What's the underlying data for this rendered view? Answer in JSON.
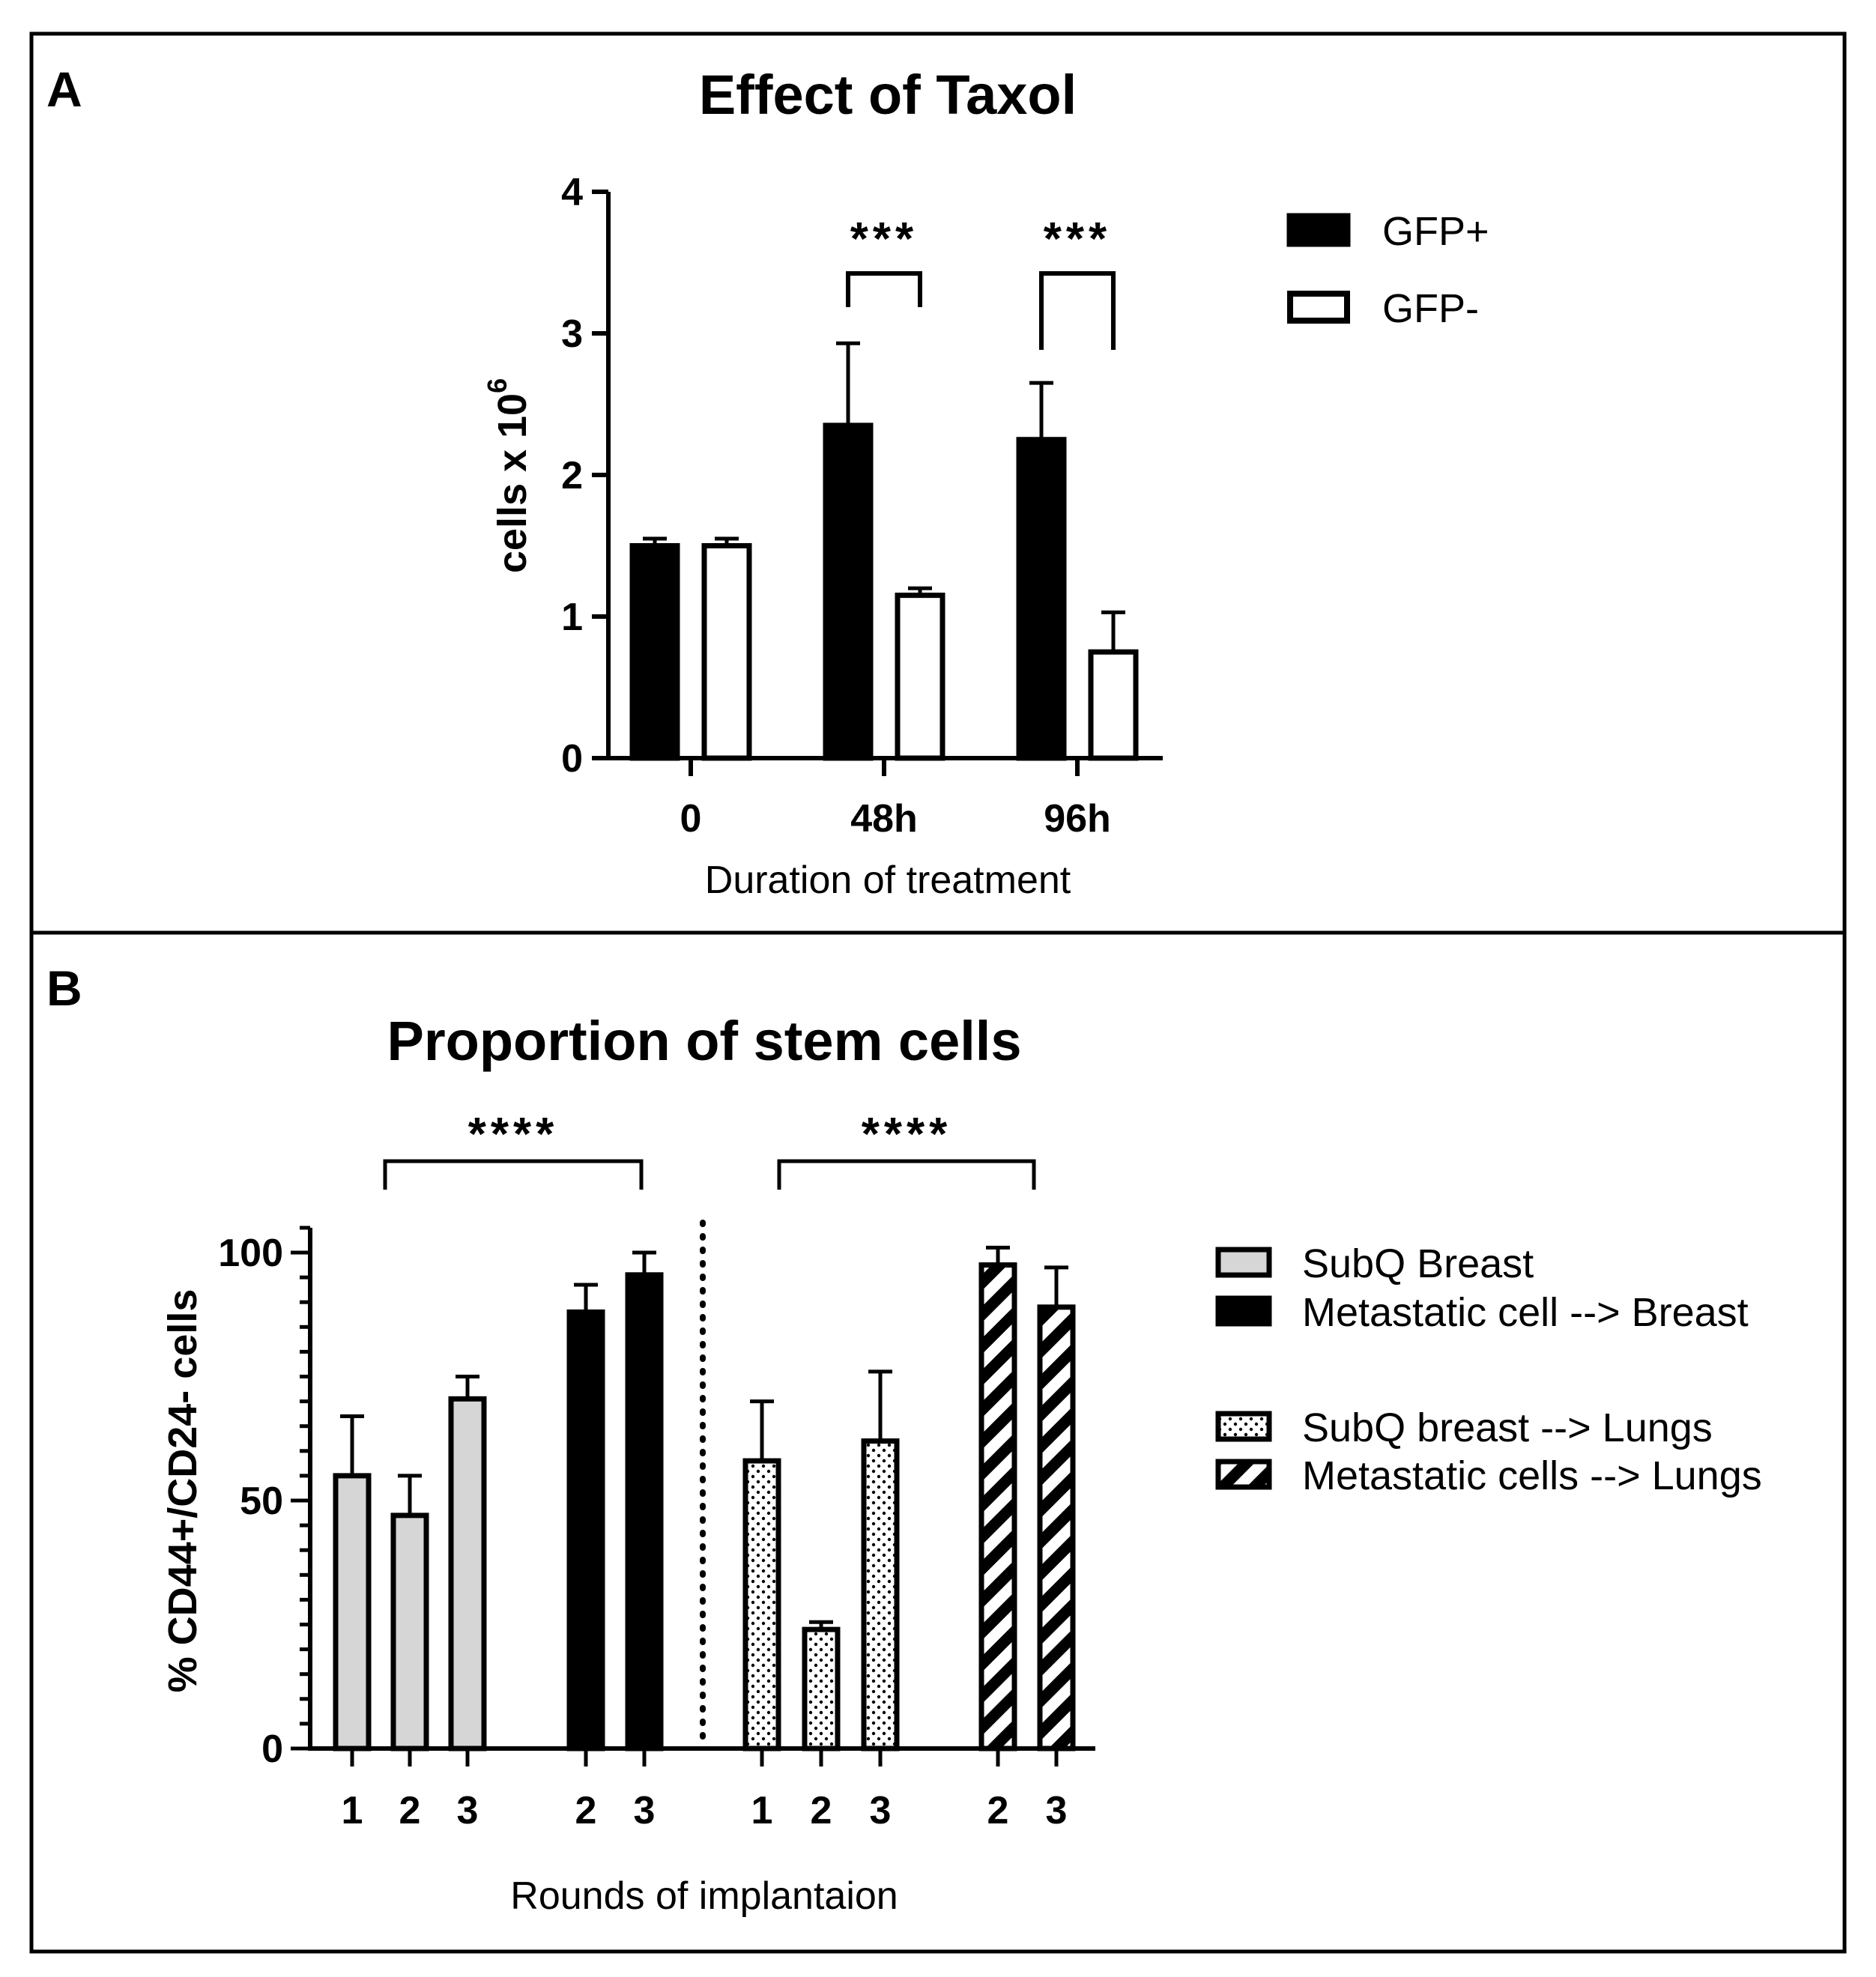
{
  "colors": {
    "black": "#000000",
    "white": "#ffffff",
    "light_gray": "#d6d6d6"
  },
  "chart_data": [
    {
      "panel": "A",
      "type": "bar",
      "title": "Effect of  Taxol",
      "xlabel": "Duration of treatment",
      "ylabel": "cells x 10",
      "ylabel_superscript": "6",
      "categories": [
        "0",
        "48h",
        "96h"
      ],
      "y_ticks": [
        "0",
        "1",
        "2",
        "3",
        "4"
      ],
      "ylim": [
        0,
        4
      ],
      "series": [
        {
          "name": "GFP+",
          "fill": "black",
          "values": [
            1.5,
            2.35,
            2.25
          ],
          "errors": [
            0.05,
            0.58,
            0.4
          ]
        },
        {
          "name": "GFP-",
          "fill": "white",
          "values": [
            1.5,
            1.15,
            0.75
          ],
          "errors": [
            0.05,
            0.05,
            0.28
          ]
        }
      ],
      "significance": [
        {
          "category": "48h",
          "label": "***"
        },
        {
          "category": "96h",
          "label": "***"
        }
      ],
      "legend_position": "top-right"
    },
    {
      "panel": "B",
      "type": "bar",
      "title": "Proportion of stem cells",
      "xlabel": "Rounds of implantaion",
      "ylabel": "% CD44+/CD24- cells",
      "y_ticks": [
        "0",
        "50",
        "100"
      ],
      "ylim": [
        0,
        105
      ],
      "series": [
        {
          "name": "SubQ Breast",
          "pattern": "gray",
          "x": [
            "1",
            "2",
            "3"
          ],
          "values": [
            55,
            47,
            70.5
          ],
          "errors": [
            12,
            8,
            4.5
          ]
        },
        {
          "name": "Metastatic cell --> Breast",
          "pattern": "black",
          "x": [
            "2",
            "3"
          ],
          "values": [
            88,
            95.5
          ],
          "errors": [
            5.5,
            4.5
          ]
        },
        {
          "name": "SubQ breast --> Lungs",
          "pattern": "dots",
          "x": [
            "1",
            "2",
            "3"
          ],
          "values": [
            58,
            24,
            62
          ],
          "errors": [
            12,
            1.5,
            14
          ]
        },
        {
          "name": "Metastatic cells --> Lungs",
          "pattern": "stripes",
          "x": [
            "2",
            "3"
          ],
          "values": [
            97.5,
            89
          ],
          "errors": [
            3.5,
            8
          ]
        }
      ],
      "significance": [
        {
          "between": [
            "SubQ Breast",
            "Metastatic cell --> Breast"
          ],
          "label": "****"
        },
        {
          "between": [
            "SubQ breast --> Lungs",
            "Metastatic cells --> Lungs"
          ],
          "label": "****"
        }
      ],
      "legend_position": "right"
    }
  ]
}
